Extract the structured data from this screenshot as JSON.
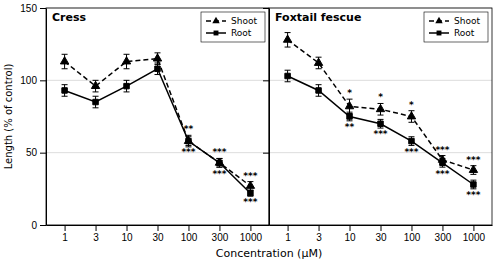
{
  "chart_data": [
    {
      "type": "line",
      "title": "Cress",
      "categories": [
        "1",
        "3",
        "10",
        "30",
        "100",
        "300",
        "1000"
      ],
      "xlabel": "Concentration (μM)",
      "ylabel": "Length (% of control)",
      "ylim": [
        0,
        150
      ],
      "yticks": [
        0,
        50,
        100,
        150
      ],
      "grid": true,
      "legend": "upper-right",
      "series": [
        {
          "name": "Shoot",
          "color": "#000000",
          "marker": "triangle",
          "line_style": "dashed",
          "values": [
            113,
            96,
            113,
            115,
            58,
            43,
            27
          ],
          "errors": [
            5,
            4,
            5,
            4,
            4,
            3,
            3
          ],
          "annotations": [
            null,
            null,
            null,
            null,
            "**",
            "***",
            "***"
          ]
        },
        {
          "name": "Root",
          "color": "#000000",
          "marker": "square",
          "line_style": "solid",
          "values": [
            93,
            85,
            96,
            108,
            58,
            43,
            22
          ],
          "errors": [
            4,
            4,
            4,
            4,
            3,
            3,
            2
          ],
          "annotations": [
            null,
            null,
            null,
            null,
            "***",
            "***",
            "***"
          ]
        }
      ]
    },
    {
      "type": "line",
      "title": "Foxtail fescue",
      "categories": [
        "1",
        "3",
        "10",
        "30",
        "100",
        "300",
        "1000"
      ],
      "ylim": [
        0,
        150
      ],
      "yticks": [
        0,
        50,
        100,
        150
      ],
      "grid": true,
      "legend": "upper-right",
      "tick_labels": "x",
      "series": [
        {
          "name": "Shoot",
          "color": "#000000",
          "marker": "triangle",
          "line_style": "dashed",
          "values": [
            128,
            112,
            82,
            80,
            75,
            45,
            38
          ],
          "errors": [
            5,
            4,
            5,
            4,
            4,
            3,
            3
          ],
          "annotations": [
            null,
            null,
            "*",
            "*",
            "*",
            "***",
            "***"
          ]
        },
        {
          "name": "Root",
          "color": "#000000",
          "marker": "square",
          "line_style": "solid",
          "values": [
            103,
            93,
            75,
            70,
            58,
            43,
            28
          ],
          "errors": [
            4,
            4,
            3,
            3,
            3,
            3,
            3
          ],
          "annotations": [
            null,
            null,
            "**",
            "***",
            "***",
            "***",
            "***"
          ]
        }
      ]
    }
  ]
}
